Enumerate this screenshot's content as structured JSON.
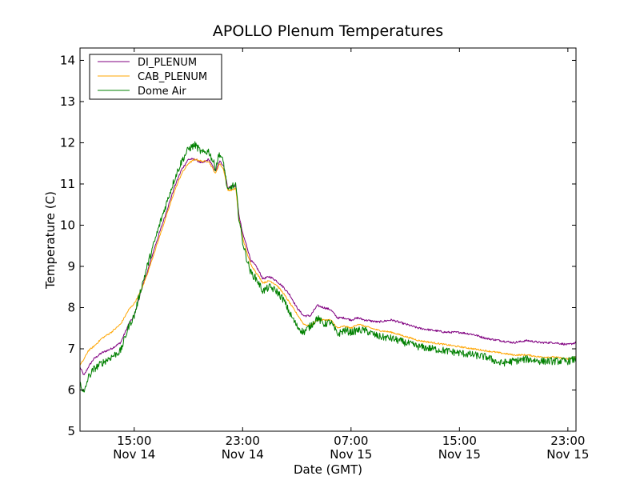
{
  "chart_data": {
    "type": "line",
    "title": "APOLLO Plenum Temperatures",
    "xlabel": "Date (GMT)",
    "ylabel": "Temperature (C)",
    "x_unit": "hours since Nov 14 00:00 GMT",
    "xlim": [
      11.0,
      47.6
    ],
    "ylim": [
      5,
      14.3
    ],
    "y_ticks": [
      5,
      6,
      7,
      8,
      9,
      10,
      11,
      12,
      13,
      14
    ],
    "x_ticks": [
      {
        "x": 15,
        "time": "15:00",
        "date": "Nov 14"
      },
      {
        "x": 23,
        "time": "23:00",
        "date": "Nov 14"
      },
      {
        "x": 31,
        "time": "07:00",
        "date": "Nov 15"
      },
      {
        "x": 39,
        "time": "15:00",
        "date": "Nov 15"
      },
      {
        "x": 47,
        "time": "23:00",
        "date": "Nov 15"
      }
    ],
    "legend": {
      "position": "upper-left"
    },
    "series": [
      {
        "name": "DI_PLENUM",
        "color": "#800080",
        "noise": 0.025,
        "x": [
          11.0,
          11.3,
          11.6,
          12.0,
          12.6,
          13.3,
          14.0,
          14.6,
          15.0,
          15.5,
          16.0,
          16.5,
          17.0,
          17.5,
          18.0,
          18.5,
          19.0,
          19.5,
          20.0,
          20.5,
          21.0,
          21.3,
          21.6,
          21.9,
          22.2,
          22.5,
          22.7,
          23.0,
          23.3,
          23.6,
          24.0,
          24.5,
          25.0,
          25.5,
          26.0,
          26.5,
          27.0,
          27.5,
          28.0,
          28.5,
          29.0,
          29.5,
          30.0,
          30.5,
          31.0,
          31.5,
          32.0,
          33.0,
          34.0,
          35.0,
          36.0,
          37.0,
          38.0,
          39.0,
          40.0,
          41.0,
          42.0,
          43.0,
          44.0,
          45.0,
          46.0,
          47.0,
          47.6
        ],
        "values": [
          6.55,
          6.35,
          6.55,
          6.75,
          6.9,
          7.0,
          7.15,
          7.6,
          7.8,
          8.4,
          8.9,
          9.45,
          9.95,
          10.45,
          10.95,
          11.35,
          11.6,
          11.6,
          11.5,
          11.6,
          11.3,
          11.55,
          11.45,
          10.9,
          10.95,
          10.95,
          10.3,
          9.8,
          9.5,
          9.15,
          9.0,
          8.7,
          8.75,
          8.65,
          8.5,
          8.3,
          8.0,
          7.8,
          7.8,
          8.05,
          8.0,
          7.95,
          7.75,
          7.75,
          7.7,
          7.75,
          7.7,
          7.65,
          7.7,
          7.6,
          7.5,
          7.45,
          7.4,
          7.4,
          7.35,
          7.25,
          7.2,
          7.15,
          7.2,
          7.15,
          7.15,
          7.1,
          7.15
        ]
      },
      {
        "name": "CAB_PLENUM",
        "color": "#ffa500",
        "noise": 0.02,
        "x": [
          11.0,
          11.3,
          11.6,
          12.0,
          12.6,
          13.3,
          14.0,
          14.6,
          15.0,
          15.5,
          16.0,
          16.5,
          17.0,
          17.5,
          18.0,
          18.5,
          19.0,
          19.5,
          20.0,
          20.5,
          21.0,
          21.3,
          21.6,
          21.9,
          22.2,
          22.5,
          22.7,
          23.0,
          23.3,
          23.6,
          24.0,
          24.5,
          25.0,
          25.5,
          26.0,
          26.5,
          27.0,
          27.5,
          28.0,
          28.5,
          29.0,
          29.5,
          30.0,
          30.5,
          31.0,
          31.5,
          32.0,
          33.0,
          34.0,
          35.0,
          36.0,
          37.0,
          38.0,
          39.0,
          40.0,
          41.0,
          42.0,
          43.0,
          44.0,
          45.0,
          46.0,
          47.0,
          47.6
        ],
        "values": [
          6.6,
          6.75,
          6.95,
          7.05,
          7.25,
          7.4,
          7.6,
          7.95,
          8.1,
          8.4,
          8.85,
          9.35,
          9.85,
          10.35,
          10.85,
          11.25,
          11.5,
          11.6,
          11.55,
          11.55,
          11.25,
          11.5,
          11.35,
          10.85,
          10.85,
          10.9,
          10.2,
          9.7,
          9.35,
          9.05,
          8.85,
          8.6,
          8.65,
          8.55,
          8.35,
          8.1,
          7.85,
          7.6,
          7.55,
          7.7,
          7.7,
          7.7,
          7.5,
          7.55,
          7.5,
          7.6,
          7.55,
          7.45,
          7.4,
          7.3,
          7.2,
          7.15,
          7.1,
          7.05,
          7.0,
          6.95,
          6.9,
          6.85,
          6.85,
          6.8,
          6.8,
          6.75,
          6.8
        ]
      },
      {
        "name": "Dome Air",
        "color": "#008000",
        "noise": 0.09,
        "x": [
          11.0,
          11.3,
          11.6,
          12.0,
          12.6,
          13.3,
          14.0,
          14.6,
          15.0,
          15.5,
          16.0,
          16.5,
          17.0,
          17.5,
          18.0,
          18.5,
          19.0,
          19.5,
          20.0,
          20.5,
          21.0,
          21.3,
          21.6,
          21.9,
          22.2,
          22.5,
          22.7,
          23.0,
          23.3,
          23.6,
          24.0,
          24.5,
          25.0,
          25.5,
          26.0,
          26.5,
          27.0,
          27.5,
          28.0,
          28.5,
          29.0,
          29.5,
          30.0,
          30.5,
          31.0,
          31.5,
          32.0,
          33.0,
          34.0,
          35.0,
          36.0,
          37.0,
          38.0,
          39.0,
          40.0,
          41.0,
          42.0,
          43.0,
          44.0,
          45.0,
          46.0,
          47.0,
          47.6
        ],
        "values": [
          6.2,
          5.9,
          6.3,
          6.5,
          6.65,
          6.8,
          6.95,
          7.55,
          7.8,
          8.45,
          9.05,
          9.6,
          10.15,
          10.65,
          11.15,
          11.55,
          11.85,
          11.95,
          11.75,
          11.8,
          11.4,
          11.75,
          11.5,
          10.8,
          10.95,
          10.95,
          10.25,
          9.6,
          9.2,
          8.85,
          8.7,
          8.4,
          8.5,
          8.4,
          8.2,
          7.85,
          7.55,
          7.4,
          7.55,
          7.75,
          7.6,
          7.65,
          7.35,
          7.45,
          7.4,
          7.45,
          7.45,
          7.3,
          7.25,
          7.15,
          7.05,
          7.0,
          6.95,
          6.9,
          6.85,
          6.8,
          6.65,
          6.7,
          6.75,
          6.7,
          6.7,
          6.7,
          6.75
        ]
      }
    ]
  }
}
